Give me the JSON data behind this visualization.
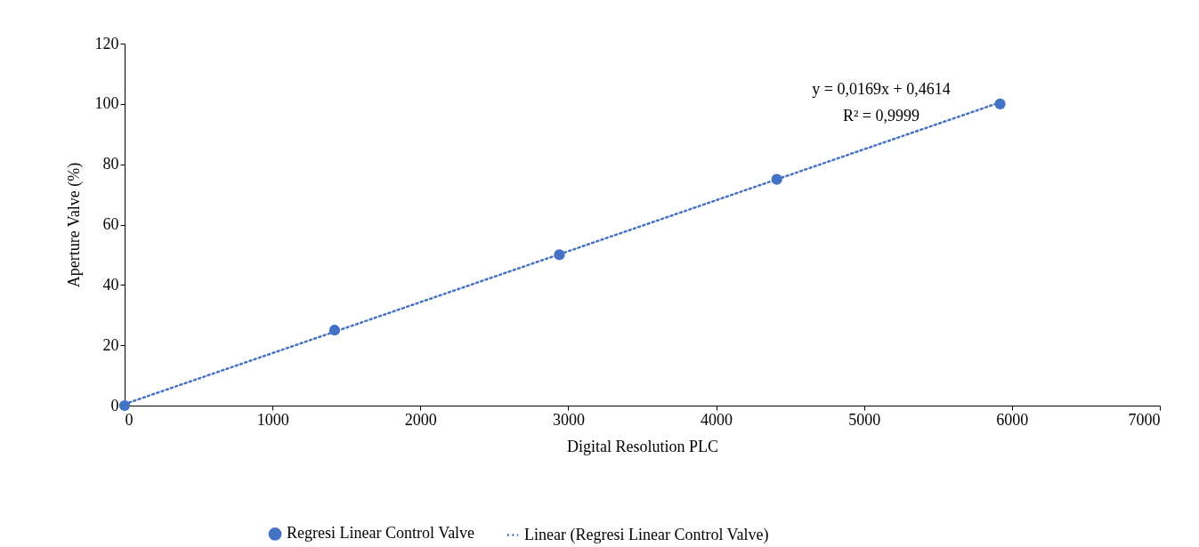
{
  "chart_data": {
    "type": "scatter",
    "xlabel": "Digital Resolution PLC",
    "ylabel": "Aperture Valve (%)",
    "xlim": [
      0,
      7000
    ],
    "xticks": [
      0,
      1000,
      2000,
      3000,
      4000,
      5000,
      6000,
      7000
    ],
    "ylim": [
      0,
      120
    ],
    "yticks": [
      0,
      20,
      40,
      60,
      80,
      100,
      120
    ],
    "grid": false,
    "legend": "bottom",
    "annotations": [
      "y = 0,0169x + 0,4614",
      "R² = 0,9999"
    ],
    "series": [
      {
        "name": "Regresi Linear Control Valve",
        "color": "#4472c4",
        "marker": "circle",
        "x": [
          0,
          1420,
          2940,
          4410,
          5920
        ],
        "values": [
          0,
          25,
          50,
          75,
          100
        ]
      },
      {
        "name": "Linear (Regresi Linear Control Valve)",
        "type": "line",
        "line_style": "dotted",
        "marker": "none",
        "color": "#4472c4",
        "x": [
          0,
          5920
        ],
        "values": [
          0.5,
          100.5
        ]
      }
    ]
  }
}
